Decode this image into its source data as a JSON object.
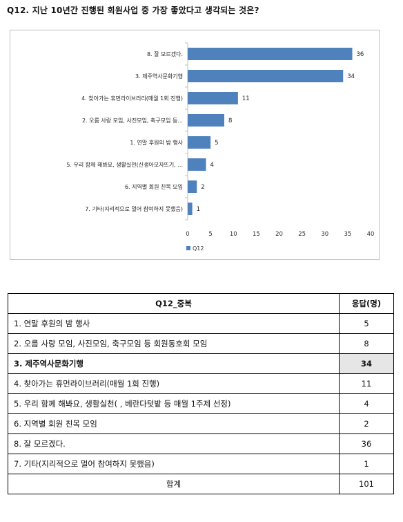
{
  "question": "Q12. 지난 10년간 진행된 회원사업 중 가장 좋았다고 생각되는 것은?",
  "colors": {
    "bar": "#4f81bd",
    "axis": "#bfbfbf",
    "highlight": "#e6e6e6"
  },
  "chart_data": {
    "type": "bar",
    "orientation": "horizontal",
    "categories": [
      "8. 잘 모르겠다.",
      "3. 제주역사문화기행",
      "4. 찾아가는 휴먼라이브러리(매월 1회 진행)",
      "2. 오름 사랑 모임, 사진모임, 축구모임 등...",
      "1. 연말 후원의 밤 행사",
      "5. 우리 함께 해봐요, 생활실천(신생아모자뜨기, ...",
      "6. 지역별 회원 친목 모임",
      "7. 기타(지리적으로 멀어 참여하지 못했음)"
    ],
    "series": [
      {
        "name": "Q12",
        "values": [
          36,
          34,
          11,
          8,
          5,
          4,
          2,
          1
        ]
      }
    ],
    "xlim": [
      0,
      40
    ],
    "xticks": [
      0,
      5,
      10,
      15,
      20,
      25,
      30,
      35,
      40
    ],
    "legend": "bottom-left",
    "grid": false
  },
  "table": {
    "headers": [
      "Q12_중복",
      "응답(명)"
    ],
    "rows": [
      {
        "item": "1. 연말 후원의 밤 행사",
        "count": "5",
        "highlight": false
      },
      {
        "item": "2. 오름 사랑 모임,  사진모임, 축구모임 등 회원동호회 모임",
        "count": "8",
        "highlight": false
      },
      {
        "item": "3. 제주역사문화기행",
        "count": "34",
        "highlight": true
      },
      {
        "item": "4. 찾아가는 휴먼라이브러리(매월 1회 진행)",
        "count": "11",
        "highlight": false
      },
      {
        "item": "5. 우리 함께 해봐요, 생활실천(                      , 베란다텃밭 등 매월 1주제 선정)",
        "count": "4",
        "highlight": false
      },
      {
        "item": "6. 지역별 회원 친목 모임",
        "count": "2",
        "highlight": false
      },
      {
        "item": "8. 잘 모르겠다.",
        "count": "36",
        "highlight": false
      },
      {
        "item": "7. 기타(지리적으로 멀어 참여하지 못했음)",
        "count": "1",
        "highlight": false
      }
    ],
    "total_label": "합계",
    "total_value": "101"
  }
}
